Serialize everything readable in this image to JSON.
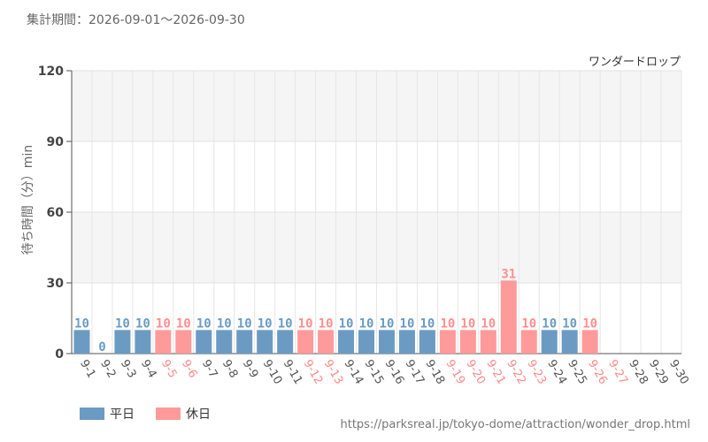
{
  "header": {
    "period_label": "集計期間：2026-09-01～2026-09-30"
  },
  "chart_data": {
    "type": "bar",
    "title": "ワンダードロップ",
    "ylabel": "待ち時間（分）min",
    "xlabel": "",
    "ylim": [
      0,
      120
    ],
    "yticks": [
      0,
      30,
      60,
      90,
      120
    ],
    "grid": true,
    "categories": [
      "9-1",
      "9-2",
      "9-3",
      "9-4",
      "9-5",
      "9-6",
      "9-7",
      "9-8",
      "9-9",
      "9-10",
      "9-11",
      "9-12",
      "9-13",
      "9-14",
      "9-15",
      "9-16",
      "9-17",
      "9-18",
      "9-19",
      "9-20",
      "9-21",
      "9-22",
      "9-23",
      "9-24",
      "9-25",
      "9-26",
      "9-27",
      "9-28",
      "9-29",
      "9-30"
    ],
    "values": [
      10,
      0,
      10,
      10,
      10,
      10,
      10,
      10,
      10,
      10,
      10,
      10,
      10,
      10,
      10,
      10,
      10,
      10,
      10,
      10,
      10,
      31,
      10,
      10,
      10,
      10,
      null,
      null,
      null,
      null
    ],
    "day_type": [
      "weekday",
      "weekday",
      "weekday",
      "weekday",
      "holiday",
      "holiday",
      "weekday",
      "weekday",
      "weekday",
      "weekday",
      "weekday",
      "holiday",
      "holiday",
      "weekday",
      "weekday",
      "weekday",
      "weekday",
      "weekday",
      "holiday",
      "holiday",
      "holiday",
      "holiday",
      "holiday",
      "weekday",
      "weekday",
      "holiday",
      "holiday",
      "weekday",
      "weekday",
      "weekday"
    ],
    "legend": [
      {
        "key": "weekday",
        "label": "平日"
      },
      {
        "key": "holiday",
        "label": "休日"
      }
    ],
    "legend_position": "bottom-left",
    "colors": {
      "weekday_bar": "#6b9bc3",
      "holiday_bar": "#ff9a9a",
      "weekday_label": "#6b9bc3",
      "holiday_label": "#ff8f8f",
      "weekday_tick": "#555555",
      "holiday_tick": "#ff8a8a"
    }
  },
  "footer": {
    "source_url": "https://parksreal.jp/tokyo-dome/attraction/wonder_drop.html"
  }
}
